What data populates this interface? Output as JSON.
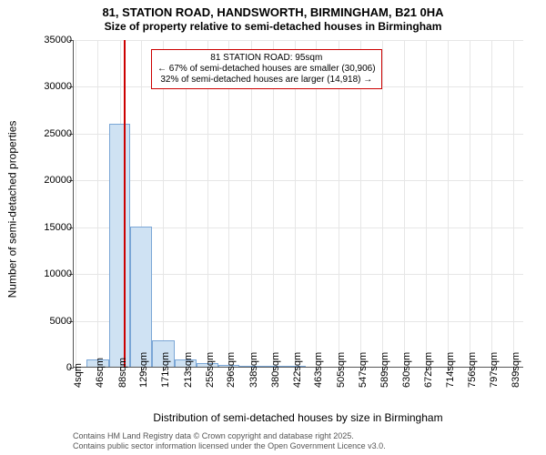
{
  "title_line1": "81, STATION ROAD, HANDSWORTH, BIRMINGHAM, B21 0HA",
  "title_line2": "Size of property relative to semi-detached houses in Birmingham",
  "y_axis_label": "Number of semi-detached properties",
  "x_axis_label": "Distribution of semi-detached houses by size in Birmingham",
  "footer_line1": "Contains HM Land Registry data © Crown copyright and database right 2025.",
  "footer_line2": "Contains public sector information licensed under the Open Government Licence v3.0.",
  "chart": {
    "type": "histogram",
    "background_color": "#ffffff",
    "grid_color": "#e6e6e6",
    "axis_color": "#555555",
    "bar_fill": "#cfe2f3",
    "bar_border": "#7aa6d6",
    "marker_color": "#cc0000",
    "annot_border": "#cc0000",
    "y_min": 0,
    "y_max": 35000,
    "y_tick_step": 5000,
    "y_ticks": [
      0,
      5000,
      10000,
      15000,
      20000,
      25000,
      30000,
      35000
    ],
    "x_min": 0,
    "x_max": 860,
    "x_tick_labels": [
      "4sqm",
      "46sqm",
      "88sqm",
      "129sqm",
      "171sqm",
      "213sqm",
      "255sqm",
      "296sqm",
      "338sqm",
      "380sqm",
      "422sqm",
      "463sqm",
      "505sqm",
      "547sqm",
      "589sqm",
      "630sqm",
      "672sqm",
      "714sqm",
      "756sqm",
      "797sqm",
      "839sqm"
    ],
    "x_tick_positions": [
      4,
      46,
      88,
      129,
      171,
      213,
      255,
      296,
      338,
      380,
      422,
      463,
      505,
      547,
      589,
      630,
      672,
      714,
      756,
      797,
      839
    ],
    "bars": [
      {
        "x_start": 25,
        "x_end": 67,
        "value": 800
      },
      {
        "x_start": 67,
        "x_end": 108,
        "value": 26000
      },
      {
        "x_start": 108,
        "x_end": 150,
        "value": 15000
      },
      {
        "x_start": 150,
        "x_end": 192,
        "value": 2800
      },
      {
        "x_start": 192,
        "x_end": 234,
        "value": 800
      },
      {
        "x_start": 234,
        "x_end": 276,
        "value": 350
      },
      {
        "x_start": 276,
        "x_end": 317,
        "value": 150
      },
      {
        "x_start": 317,
        "x_end": 359,
        "value": 70
      },
      {
        "x_start": 359,
        "x_end": 401,
        "value": 40
      },
      {
        "x_start": 401,
        "x_end": 443,
        "value": 20
      }
    ],
    "marker_x": 95,
    "annotation": {
      "line1": "81 STATION ROAD: 95sqm",
      "line2": "← 67% of semi-detached houses are smaller (30,906)",
      "line3": "32% of semi-detached houses are larger (14,918) →"
    },
    "label_fontsize": 12,
    "tick_fontsize": 11,
    "title_fontsize": 13,
    "annot_fontsize": 10
  }
}
